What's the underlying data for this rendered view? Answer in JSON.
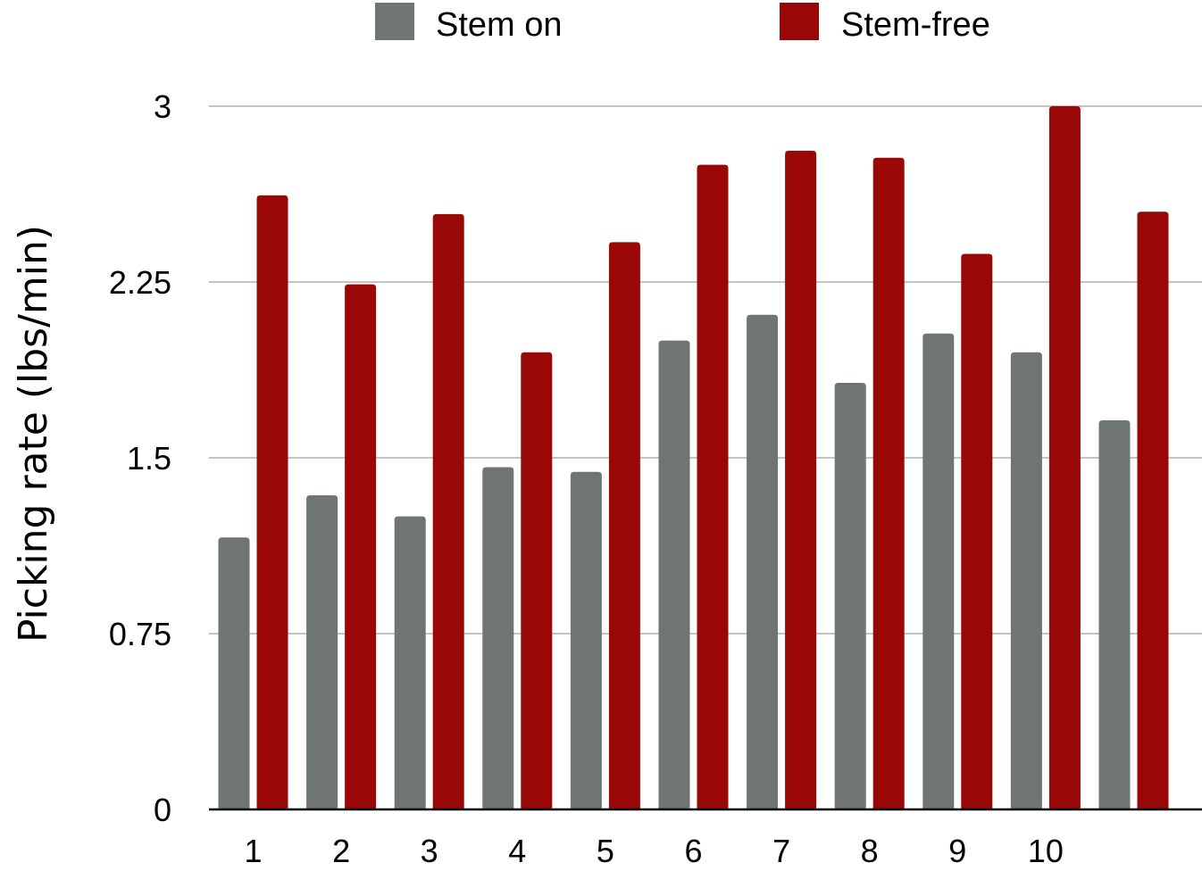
{
  "chart_data": {
    "type": "bar",
    "title": "",
    "xlabel": "",
    "ylabel": "Picking rate (lbs/min)",
    "ylim": [
      0,
      3
    ],
    "yticks": [
      "0",
      "0.75",
      "1.5",
      "2.25",
      "3"
    ],
    "ytick_values": [
      0,
      0.75,
      1.5,
      2.25,
      3
    ],
    "categories": [
      "1",
      "2",
      "3",
      "4",
      "5",
      "6",
      "7",
      "8",
      "9",
      "10",
      ""
    ],
    "grid": true,
    "legend_position": "top",
    "series": [
      {
        "name": "Stem on",
        "color": "#6f7572",
        "values": [
          1.16,
          1.34,
          1.25,
          1.46,
          1.44,
          2.0,
          2.11,
          1.82,
          2.03,
          1.95,
          1.66
        ]
      },
      {
        "name": "Stem-free",
        "color": "#990806",
        "values": [
          2.62,
          2.24,
          2.54,
          1.95,
          2.42,
          2.75,
          2.81,
          2.78,
          2.37,
          3.0,
          2.55
        ]
      }
    ]
  }
}
